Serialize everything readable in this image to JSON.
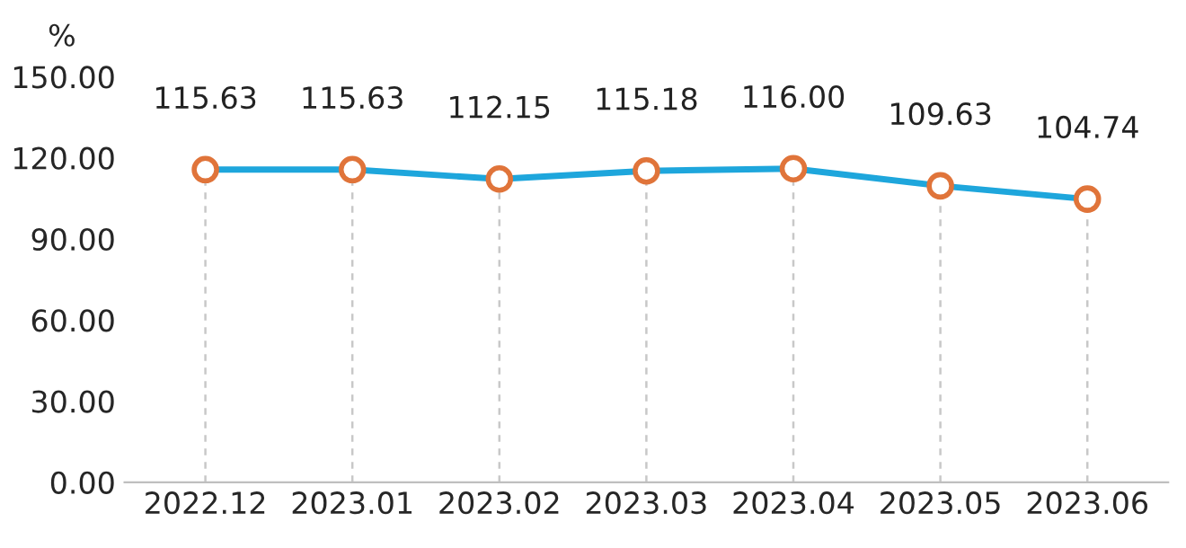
{
  "chart_data": {
    "type": "line",
    "ylabel": "%",
    "categories": [
      "2022.12",
      "2023.01",
      "2023.02",
      "2023.03",
      "2023.04",
      "2023.05",
      "2023.06"
    ],
    "series": [
      {
        "color": "#1ea6dc",
        "values": [
          115.63,
          115.63,
          112.15,
          115.18,
          116.0,
          109.63,
          104.74
        ],
        "value_labels": [
          "115.63",
          "115.63",
          "112.15",
          "115.18",
          "116.00",
          "109.63",
          "104.74"
        ]
      }
    ],
    "ylim": [
      0,
      150
    ],
    "yticks": [
      {
        "value": 0,
        "label": "0.00"
      },
      {
        "value": 30,
        "label": "30.00"
      },
      {
        "value": 60,
        "label": "60.00"
      },
      {
        "value": 90,
        "label": "90.00"
      },
      {
        "value": 120,
        "label": "120.00"
      },
      {
        "value": 150,
        "label": "150.00"
      }
    ],
    "grid": "x",
    "marker": "circle",
    "line_style": "solid",
    "legend": false
  }
}
